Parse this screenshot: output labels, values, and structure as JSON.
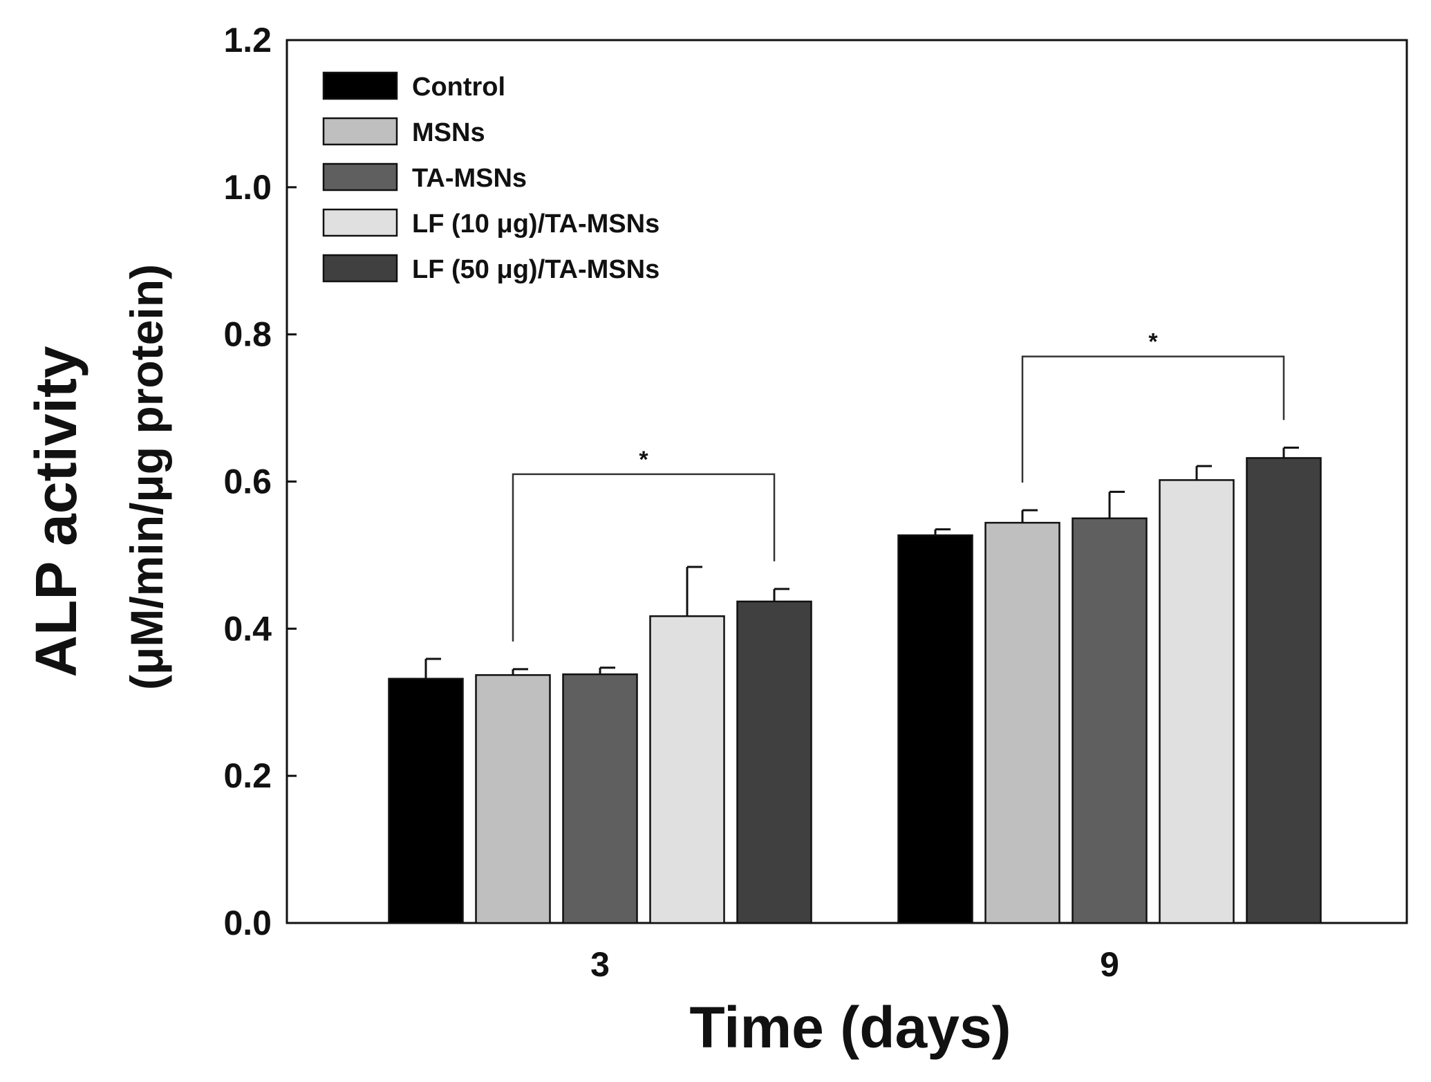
{
  "chart_data": {
    "type": "bar",
    "title": "",
    "xlabel": "Time (days)",
    "ylabel_line1": "ALP activity",
    "ylabel_line2": "(μM/min/μg protein)",
    "ylim": [
      0,
      1.2
    ],
    "yticks": [
      "0.0",
      "0.2",
      "0.4",
      "0.6",
      "0.8",
      "1.0",
      "1.2"
    ],
    "ytick_values": [
      0,
      0.2,
      0.4,
      0.6,
      0.8,
      1.0,
      1.2
    ],
    "categories": [
      "3",
      "9"
    ],
    "legend_position": "top-left",
    "grid": false,
    "series": [
      {
        "name": "Control",
        "color": "#000000",
        "values": [
          0.332,
          0.527
        ],
        "errors": [
          0.027,
          0.008
        ]
      },
      {
        "name": "MSNs",
        "color": "#bfbfbf",
        "values": [
          0.337,
          0.544
        ],
        "errors": [
          0.008,
          0.017
        ]
      },
      {
        "name": "TA-MSNs",
        "color": "#5f5f5f",
        "values": [
          0.338,
          0.55
        ],
        "errors": [
          0.009,
          0.036
        ]
      },
      {
        "name": "LF (10 μg)/TA-MSNs",
        "color": "#e0e0e0",
        "values": [
          0.417,
          0.602
        ],
        "errors": [
          0.067,
          0.019
        ]
      },
      {
        "name": "LF (50 μg)/TA-MSNs",
        "color": "#404040",
        "values": [
          0.437,
          0.632
        ],
        "errors": [
          0.017,
          0.014
        ]
      }
    ],
    "significance": [
      {
        "category": "3",
        "from_series": 1,
        "to_series": 4,
        "label": "*"
      },
      {
        "category": "9",
        "from_series": 1,
        "to_series": 4,
        "label": "*"
      }
    ]
  }
}
